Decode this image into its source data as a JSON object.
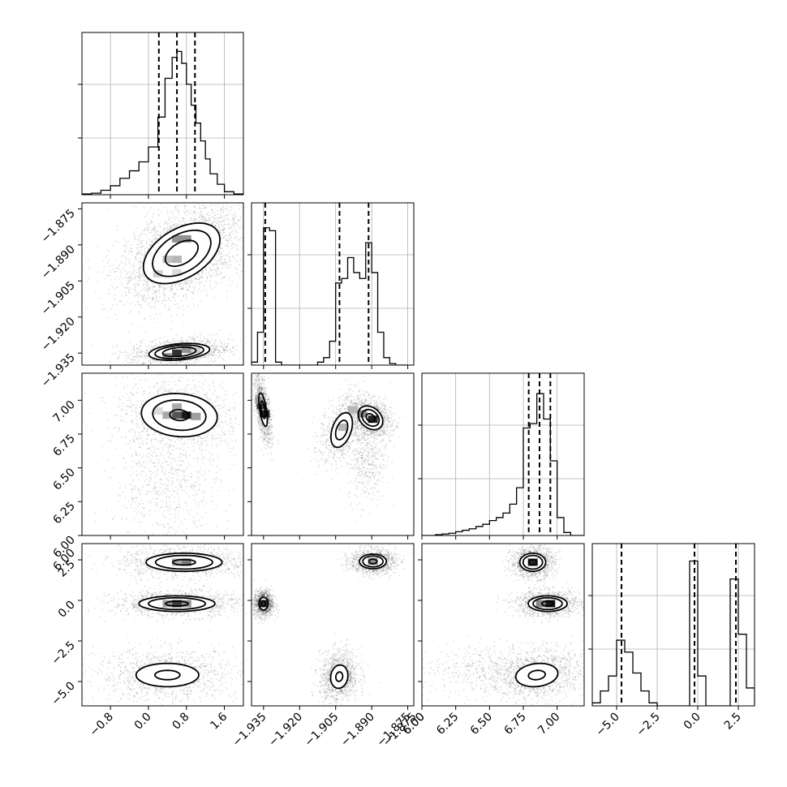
{
  "chart_data": {
    "type": "corner",
    "parameters": [
      {
        "range": [
          -1.4,
          2.0
        ],
        "ticks": [
          -0.8,
          0.0,
          0.8,
          1.6
        ],
        "tick_labels": [
          "−0.8",
          "0.0",
          "0.8",
          "1.6"
        ],
        "quantiles": [
          0.22,
          0.6,
          0.98
        ],
        "hist": {
          "edges": [
            -1.4,
            -1.2,
            -1.0,
            -0.8,
            -0.6,
            -0.4,
            -0.2,
            0.0,
            0.2,
            0.35,
            0.5,
            0.6,
            0.7,
            0.8,
            0.9,
            1.0,
            1.1,
            1.2,
            1.3,
            1.45,
            1.6,
            1.8,
            2.0
          ],
          "counts": [
            0.005,
            0.01,
            0.03,
            0.06,
            0.11,
            0.16,
            0.22,
            0.32,
            0.52,
            0.78,
            0.92,
            0.96,
            0.88,
            0.74,
            0.6,
            0.48,
            0.36,
            0.24,
            0.14,
            0.07,
            0.02,
            0.005
          ]
        }
      },
      {
        "range": [
          -1.94,
          -1.8725
        ],
        "ticks": [
          -1.935,
          -1.92,
          -1.905,
          -1.89,
          -1.875
        ],
        "tick_labels": [
          "−1.935",
          "−1.920",
          "−1.905",
          "−1.890",
          "−1.875"
        ],
        "quantiles": [
          -1.9343,
          -1.9034,
          -1.8913
        ],
        "hist": {
          "edges": [
            -1.94,
            -1.9375,
            -1.935,
            -1.9325,
            -1.93,
            -1.9275,
            -1.925,
            -1.9225,
            -1.92,
            -1.9175,
            -1.915,
            -1.9125,
            -1.91,
            -1.9075,
            -1.905,
            -1.9025,
            -1.9,
            -1.8975,
            -1.895,
            -1.8925,
            -1.89,
            -1.8875,
            -1.885,
            -1.8825,
            -1.88,
            -1.8775,
            -1.875
          ],
          "counts": [
            0.02,
            0.22,
            0.92,
            0.9,
            0.02,
            0.0,
            0.0,
            0.0,
            0.0,
            0.0,
            0.0,
            0.02,
            0.05,
            0.16,
            0.55,
            0.58,
            0.72,
            0.62,
            0.58,
            0.82,
            0.62,
            0.22,
            0.05,
            0.01,
            0.0,
            0.0
          ]
        }
      },
      {
        "range": [
          6.0,
          7.2
        ],
        "ticks": [
          6.0,
          6.25,
          6.5,
          6.75,
          7.0
        ],
        "tick_labels": [
          "6.00",
          "6.25",
          "6.50",
          "6.75",
          "7.00"
        ],
        "quantiles": [
          6.79,
          6.87,
          6.95
        ],
        "hist": {
          "edges": [
            6.0,
            6.05,
            6.1,
            6.15,
            6.2,
            6.25,
            6.3,
            6.35,
            6.4,
            6.45,
            6.5,
            6.55,
            6.6,
            6.65,
            6.7,
            6.75,
            6.8,
            6.85,
            6.9,
            6.95,
            7.0,
            7.05,
            7.1,
            7.15,
            7.2
          ],
          "counts": [
            0.0,
            0.0,
            0.005,
            0.01,
            0.015,
            0.025,
            0.035,
            0.045,
            0.06,
            0.075,
            0.1,
            0.12,
            0.15,
            0.21,
            0.32,
            0.72,
            0.75,
            0.95,
            0.78,
            0.5,
            0.12,
            0.02,
            0.0,
            0.0
          ]
        }
      },
      {
        "range": [
          -6.5,
          3.5
        ],
        "ticks": [
          -5.0,
          -2.5,
          0.0,
          2.5
        ],
        "tick_labels": [
          "−5.0",
          "−2.5",
          "0.0",
          "2.5"
        ],
        "extra_left_tick": {
          "value": 6.0,
          "label": "6.00"
        },
        "quantiles": [
          -4.7,
          -0.2,
          2.35
        ],
        "hist": {
          "edges": [
            -6.5,
            -6.0,
            -5.5,
            -5.0,
            -4.5,
            -4.0,
            -3.5,
            -3.0,
            -2.5,
            -2.0,
            -1.5,
            -1.0,
            -0.5,
            0.0,
            0.5,
            1.0,
            1.5,
            2.0,
            2.5,
            3.0,
            3.5
          ],
          "counts": [
            0.02,
            0.1,
            0.2,
            0.44,
            0.36,
            0.22,
            0.1,
            0.02,
            0.0,
            0.0,
            0.0,
            0.0,
            0.97,
            0.2,
            0.0,
            0.0,
            0.0,
            0.85,
            0.48,
            0.12
          ]
        }
      }
    ],
    "pairs": [
      {
        "row": 1,
        "col": 0,
        "components": [
          {
            "center": [
              0.7,
              -1.8935
            ],
            "sigma": [
              0.48,
              0.0075
            ],
            "rho": 0.45,
            "weight": 2.6,
            "levels": [
              0.45,
              0.8,
              1.05
            ],
            "cells": [
              [
                0.6,
                -1.8875,
                0.45
              ],
              [
                0.8,
                -1.8875,
                0.45
              ],
              [
                0.4,
                -1.896,
                0.25
              ],
              [
                0.6,
                -1.896,
                0.3
              ],
              [
                0.2,
                -1.902,
                0.2
              ],
              [
                0.6,
                -1.9015,
                0.15
              ]
            ]
          },
          {
            "center": [
              0.65,
              -1.9345
            ],
            "sigma": [
              0.4,
              0.0022
            ],
            "rho": 0.3,
            "weight": 1.0,
            "levels": [
              0.55,
              0.8,
              1.0
            ],
            "cells": [
              [
                0.6,
                -1.935,
                0.85
              ],
              [
                0.4,
                -1.9365,
                0.45
              ],
              [
                0.8,
                -1.9335,
                0.45
              ],
              [
                1.0,
                -1.934,
                0.2
              ]
            ]
          }
        ]
      },
      {
        "row": 2,
        "col": 0,
        "components": [
          {
            "center": [
              0.65,
              6.89
            ],
            "sigma": [
              0.5,
              0.1
            ],
            "rho": -0.1,
            "weight": 1.0,
            "levels": [
              0.25,
              0.7,
              1.0
            ],
            "cells": [
              [
                0.8,
                6.89,
                0.95
              ],
              [
                0.6,
                6.89,
                0.7
              ],
              [
                0.4,
                6.89,
                0.35
              ],
              [
                1.0,
                6.88,
                0.4
              ],
              [
                0.6,
                6.95,
                0.35
              ],
              [
                0.2,
                6.92,
                0.15
              ]
            ]
          }
        ],
        "tail": {
          "center": [
            0.4,
            6.4
          ],
          "sigma": [
            0.55,
            0.25
          ],
          "n": 700
        }
      },
      {
        "row": 2,
        "col": 1,
        "components": [
          {
            "center": [
              -1.9352,
              6.93
            ],
            "sigma": [
              0.0013,
              0.09
            ],
            "rho": -0.6,
            "weight": 1.0,
            "levels": [
              0.45,
              0.85
            ],
            "cells": [
              [
                -1.9358,
                6.96,
                0.8
              ],
              [
                -1.9345,
                6.9,
                0.9
              ],
              [
                -1.9365,
                7.0,
                0.4
              ]
            ]
          },
          {
            "center": [
              -1.8905,
              6.87
            ],
            "sigma": [
              0.0032,
              0.055
            ],
            "rho": -0.3,
            "weight": 1.0,
            "levels": [
              0.35,
              0.7,
              1.0
            ],
            "cells": [
              [
                -1.8895,
                6.86,
                0.9
              ],
              [
                -1.894,
                6.9,
                0.5
              ],
              [
                -1.898,
                6.93,
                0.3
              ]
            ]
          },
          {
            "center": [
              -1.9025,
              6.78
            ],
            "sigma": [
              0.0035,
              0.1
            ],
            "rho": 0.4,
            "weight": 0.6,
            "levels": [
              0.45,
              0.8
            ],
            "cells": [
              [
                -1.902,
                6.8,
                0.3
              ]
            ]
          }
        ],
        "tail": {
          "center": [
            -1.892,
            6.55
          ],
          "sigma": [
            0.004,
            0.15
          ],
          "n": 400
        }
      },
      {
        "row": 3,
        "col": 0,
        "components": [
          {
            "center": [
              0.75,
              2.35
            ],
            "sigma": [
              0.5,
              0.35
            ],
            "rho": 0.0,
            "weight": 1.0,
            "levels": [
              0.3,
              0.75,
              1.0
            ],
            "cells": [
              [
                0.8,
                2.35,
                0.55
              ],
              [
                0.6,
                2.35,
                0.35
              ]
            ]
          },
          {
            "center": [
              0.6,
              -0.2
            ],
            "sigma": [
              0.5,
              0.3
            ],
            "rho": 0.0,
            "weight": 1.0,
            "levels": [
              0.3,
              0.75,
              1.0
            ],
            "cells": [
              [
                0.6,
                -0.2,
                0.8
              ],
              [
                0.4,
                -0.2,
                0.4
              ],
              [
                0.8,
                -0.2,
                0.45
              ]
            ]
          },
          {
            "center": [
              0.4,
              -4.6
            ],
            "sigma": [
              0.55,
              0.6
            ],
            "rho": 0.0,
            "weight": 1.0,
            "levels": [
              0.3,
              0.75
            ]
          }
        ]
      },
      {
        "row": 3,
        "col": 1,
        "components": [
          {
            "center": [
              -1.8895,
              2.4
            ],
            "sigma": [
              0.0035,
              0.28
            ],
            "rho": 0.0,
            "weight": 1.0,
            "levels": [
              0.3,
              0.75,
              1.0
            ],
            "cells": [
              [
                -1.8895,
                2.4,
                0.45
              ]
            ]
          },
          {
            "center": [
              -1.935,
              -0.2
            ],
            "sigma": [
              0.0015,
              0.3
            ],
            "rho": 0.0,
            "weight": 1.0,
            "levels": [
              0.35,
              0.8
            ],
            "cells": [
              [
                -1.935,
                -0.2,
                0.85
              ]
            ]
          },
          {
            "center": [
              -1.9035,
              -4.7
            ],
            "sigma": [
              0.003,
              0.6
            ],
            "rho": 0.1,
            "weight": 1.0,
            "levels": [
              0.3,
              0.75
            ]
          }
        ]
      },
      {
        "row": 3,
        "col": 2,
        "components": [
          {
            "center": [
              6.82,
              2.35
            ],
            "sigma": [
              0.06,
              0.35
            ],
            "rho": 0.0,
            "weight": 1.0,
            "levels": [
              0.3,
              0.75,
              1.0
            ],
            "cells": [
              [
                6.82,
                2.35,
                0.9
              ]
            ]
          },
          {
            "center": [
              6.93,
              -0.2
            ],
            "sigma": [
              0.09,
              0.3
            ],
            "rho": 0.0,
            "weight": 1.0,
            "levels": [
              0.3,
              0.75,
              1.0
            ],
            "cells": [
              [
                6.95,
                -0.2,
                0.95
              ],
              [
                6.88,
                -0.2,
                0.5
              ]
            ]
          },
          {
            "center": [
              6.85,
              -4.6
            ],
            "sigma": [
              0.13,
              0.6
            ],
            "rho": 0.15,
            "weight": 1.0,
            "levels": [
              0.3,
              0.75
            ]
          }
        ],
        "tail": {
          "center": [
            6.5,
            -4.2
          ],
          "sigma": [
            0.3,
            0.8
          ],
          "n": 500
        }
      },
      {
        "row": 1,
        "col": 0,
        "note": "scatter-only"
      }
    ],
    "grid": true
  }
}
